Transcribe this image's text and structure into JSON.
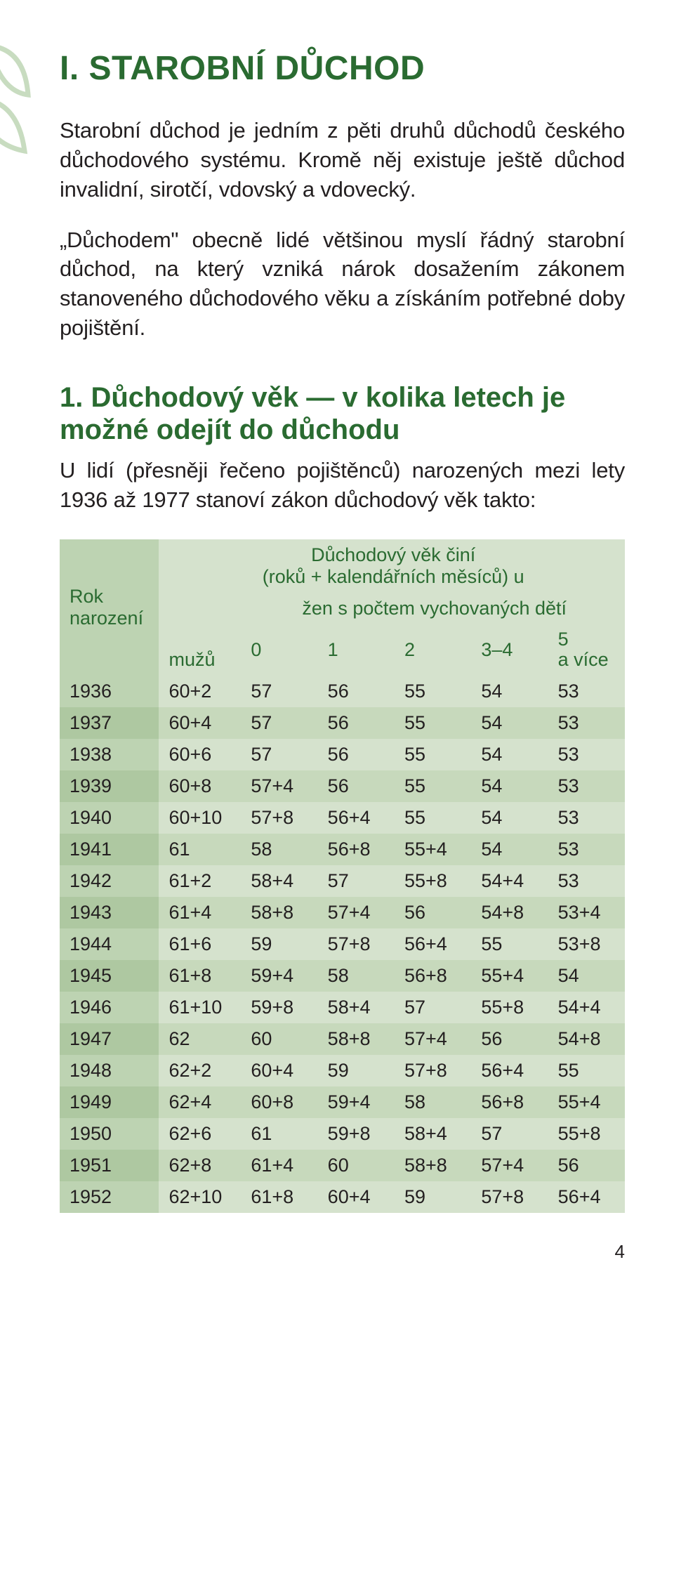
{
  "colors": {
    "heading": "#2a6b31",
    "text": "#231f20",
    "hdr_left_bg": "#bdd3b2",
    "hdr_data_bg": "#d5e2cd",
    "row_light_year": "#bdd3b2",
    "row_dark_year": "#aec8a1",
    "row_light_data": "#d5e2cd",
    "row_dark_data": "#c7d9bc",
    "leaf_stroke": "#c8dcc0"
  },
  "page_number": "4",
  "title": "I. STAROBNÍ DŮCHOD",
  "intro_p1": "Starobní důchod je jedním z pěti druhů důchodů českého důchodového systému. Kromě něj existuje ještě důchod invalidní, sirotčí, vdovský a vdovecký.",
  "intro_p2": "„Důchodem\" obecně lidé většinou myslí řádný starobní důchod, na který vzniká nárok dosažením zákonem stanoveného důchodového věku a získáním potřebné doby pojištění.",
  "section1": {
    "title": "1. Důchodový věk — v kolika letech je možné odejít do důchodu",
    "body": "U lidí (přesněji řečeno pojištěnců) narozených mezi lety 1936 až 1977 stanoví zákon důchodový věk takto:"
  },
  "table": {
    "header": {
      "rok_narozeni": "Rok narození",
      "top_span": "Důchodový věk činí\n(roků + kalendářních měsíců) u",
      "muzu": "mužů",
      "zen_row": "žen s počtem vychovaných dětí",
      "cols": [
        "0",
        "1",
        "2",
        "3–4",
        "5\na více"
      ]
    },
    "rows": [
      [
        "1936",
        "60+2",
        "57",
        "56",
        "55",
        "54",
        "53"
      ],
      [
        "1937",
        "60+4",
        "57",
        "56",
        "55",
        "54",
        "53"
      ],
      [
        "1938",
        "60+6",
        "57",
        "56",
        "55",
        "54",
        "53"
      ],
      [
        "1939",
        "60+8",
        "57+4",
        "56",
        "55",
        "54",
        "53"
      ],
      [
        "1940",
        "60+10",
        "57+8",
        "56+4",
        "55",
        "54",
        "53"
      ],
      [
        "1941",
        "61",
        "58",
        "56+8",
        "55+4",
        "54",
        "53"
      ],
      [
        "1942",
        "61+2",
        "58+4",
        "57",
        "55+8",
        "54+4",
        "53"
      ],
      [
        "1943",
        "61+4",
        "58+8",
        "57+4",
        "56",
        "54+8",
        "53+4"
      ],
      [
        "1944",
        "61+6",
        "59",
        "57+8",
        "56+4",
        "55",
        "53+8"
      ],
      [
        "1945",
        "61+8",
        "59+4",
        "58",
        "56+8",
        "55+4",
        "54"
      ],
      [
        "1946",
        "61+10",
        "59+8",
        "58+4",
        "57",
        "55+8",
        "54+4"
      ],
      [
        "1947",
        "62",
        "60",
        "58+8",
        "57+4",
        "56",
        "54+8"
      ],
      [
        "1948",
        "62+2",
        "60+4",
        "59",
        "57+8",
        "56+4",
        "55"
      ],
      [
        "1949",
        "62+4",
        "60+8",
        "59+4",
        "58",
        "56+8",
        "55+4"
      ],
      [
        "1950",
        "62+6",
        "61",
        "59+8",
        "58+4",
        "57",
        "55+8"
      ],
      [
        "1951",
        "62+8",
        "61+4",
        "60",
        "58+8",
        "57+4",
        "56"
      ],
      [
        "1952",
        "62+10",
        "61+8",
        "60+4",
        "59",
        "57+8",
        "56+4"
      ]
    ]
  }
}
